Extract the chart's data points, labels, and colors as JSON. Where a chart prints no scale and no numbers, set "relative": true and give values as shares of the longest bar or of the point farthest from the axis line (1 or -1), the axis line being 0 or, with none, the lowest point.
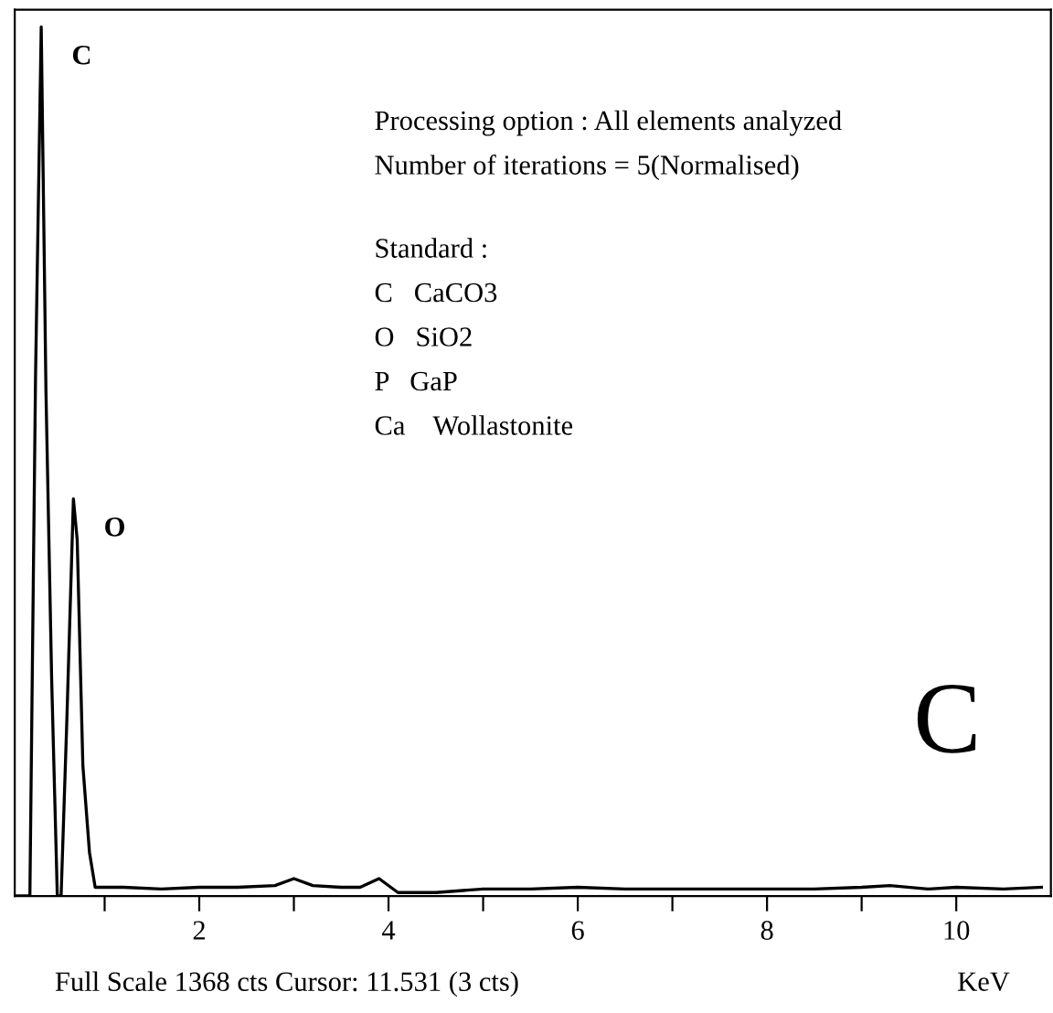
{
  "chart_data": {
    "type": "line",
    "relative": true,
    "xlabel": "KeV",
    "x": [
      0.06,
      0.21,
      0.27,
      0.33,
      0.36,
      0.38,
      0.44,
      0.5,
      0.54,
      0.6,
      0.67,
      0.71,
      0.77,
      0.84,
      0.9,
      1.2,
      1.6,
      2.0,
      2.4,
      2.8,
      3.0,
      3.2,
      3.5,
      3.7,
      3.9,
      4.1,
      4.5,
      5.0,
      5.5,
      6.0,
      6.5,
      7.0,
      7.5,
      8.0,
      8.5,
      9.0,
      9.3,
      9.7,
      10.0,
      10.5,
      10.9
    ],
    "series": [
      {
        "color": "#000000",
        "values": [
          0,
          0,
          0.6,
          1,
          0.75,
          0.58,
          0.25,
          0,
          0,
          0.2,
          0.457,
          0.41,
          0.15,
          0.05,
          0.01,
          0.01,
          0.008,
          0.01,
          0.01,
          0.012,
          0.02,
          0.012,
          0.01,
          0.01,
          0.02,
          0.004,
          0.004,
          0.008,
          0.008,
          0.01,
          0.008,
          0.008,
          0.008,
          0.008,
          0.008,
          0.01,
          0.012,
          0.008,
          0.01,
          0.008,
          0.01
        ]
      }
    ],
    "xlim": [
      0.05,
      11.0
    ],
    "xticks": [
      {
        "value": 1,
        "label": null
      },
      2,
      {
        "value": 3,
        "label": null
      },
      4,
      {
        "value": 5,
        "label": null
      },
      6,
      {
        "value": 7,
        "label": null
      },
      8,
      {
        "value": 9,
        "label": null
      },
      10
    ],
    "grid": false,
    "marker": "none",
    "line_style": "solid",
    "annotations": [
      {
        "text": "C",
        "x": 0.33,
        "y": 1
      },
      {
        "text": "O",
        "x": 0.67,
        "y": 0.457
      },
      "Processing option : All elements analyzed",
      "Number of iterations = 5(Normalised)",
      "Standard :",
      "C   CaCO3",
      "O   SiO2",
      "P   GaP",
      "Ca    Wollastonite",
      "C",
      "Full Scale 1368 cts Cursor: 11.531 (3 cts)"
    ]
  }
}
